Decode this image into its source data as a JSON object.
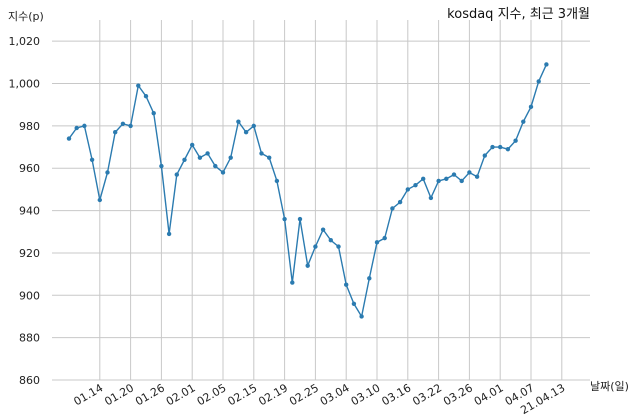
{
  "chart_data": {
    "type": "line",
    "title": "kosdaq 지수, 최근 3개월",
    "xlabel": "날짜(일)",
    "ylabel": "지수(p)",
    "ylim": [
      860,
      1030
    ],
    "yticks": [
      860,
      880,
      900,
      920,
      940,
      960,
      980,
      1000,
      1020
    ],
    "ytick_labels": [
      "860",
      "880",
      "900",
      "920",
      "940",
      "960",
      "980",
      "1,000",
      "1,020"
    ],
    "xtick_labels": [
      "01.14",
      "01.20",
      "01.26",
      "02.01",
      "02.05",
      "02.15",
      "02.19",
      "02.25",
      "03.04",
      "03.10",
      "03.16",
      "03.22",
      "03.26",
      "04.01",
      "04.07",
      "21.04.13"
    ],
    "xtick_index": [
      4,
      8,
      12,
      16,
      20,
      24,
      28,
      32,
      36,
      40,
      44,
      48,
      52,
      56,
      60,
      64
    ],
    "grid": true,
    "color": "#2b7bb0",
    "values": [
      974,
      979,
      980,
      964,
      945,
      958,
      977,
      981,
      980,
      999,
      994,
      986,
      961,
      929,
      957,
      964,
      971,
      965,
      967,
      961,
      958,
      965,
      982,
      977,
      980,
      967,
      965,
      954,
      936,
      906,
      936,
      914,
      923,
      931,
      926,
      923,
      905,
      896,
      890,
      908,
      925,
      927,
      941,
      944,
      950,
      952,
      955,
      946,
      954,
      955,
      957,
      954,
      958,
      956,
      966,
      970,
      970,
      969,
      973,
      982,
      989,
      1001,
      1009
    ]
  }
}
